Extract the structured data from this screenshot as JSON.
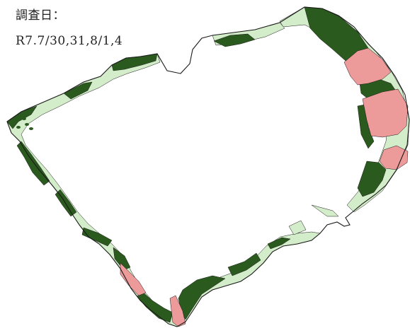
{
  "survey": {
    "label": "調査日：",
    "dates": "R7.7/30,31,8/1,4"
  },
  "map": {
    "colors": {
      "dense": "#2b5a1e",
      "sparse": "#d3ecc9",
      "pink": "#ec9a9a",
      "outline": "#1a1a1a",
      "water": "#ffffff"
    }
  }
}
